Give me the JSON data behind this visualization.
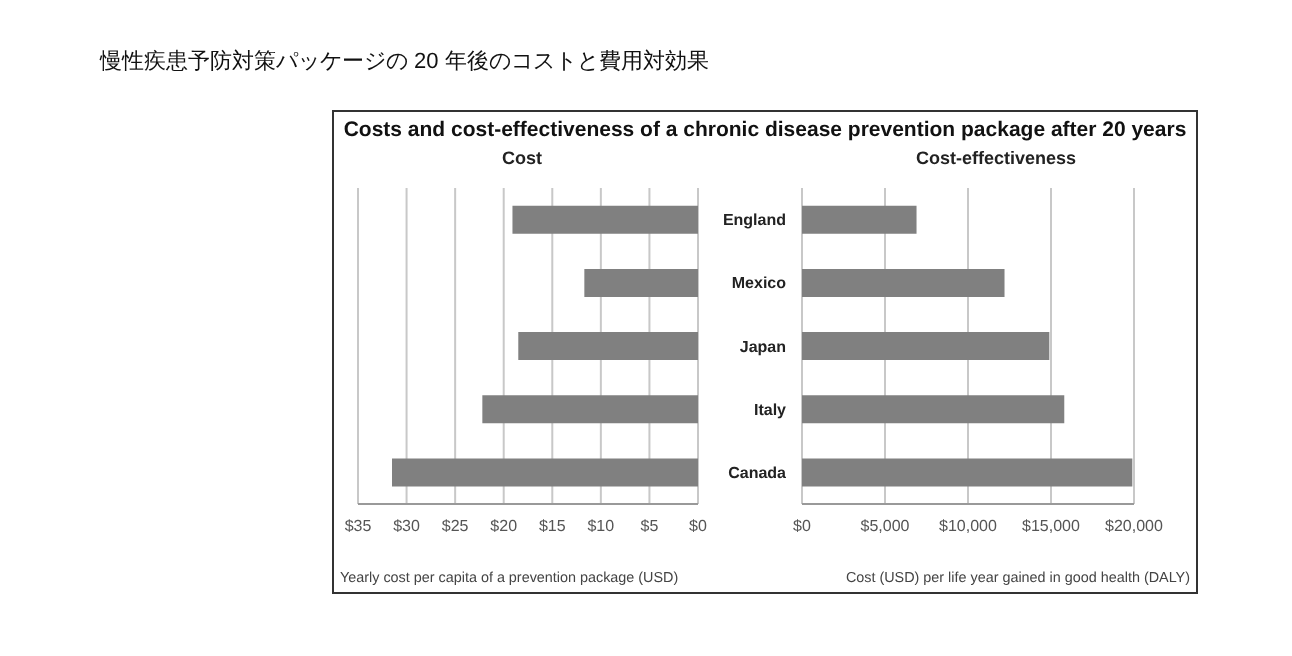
{
  "chart_data": [
    {
      "type": "bar",
      "orientation": "horizontal",
      "title": "Cost",
      "annotations": [
        "慢性疾患予防対策パッケージの 20 年後のコストと費用対効果",
        "Costs and cost-effectiveness of a chronic disease prevention package after 20 years"
      ],
      "xlabel": "Yearly cost per capita of a prevention package (USD)",
      "values": [
        19.1,
        11.7,
        18.5,
        22.2,
        31.5
      ],
      "color": "#808080",
      "xlim": [
        35,
        0
      ],
      "xticks": [
        {
          "value": 35,
          "label": "$35"
        },
        {
          "value": 30,
          "label": "$30"
        },
        {
          "value": 25,
          "label": "$25"
        },
        {
          "value": 20,
          "label": "$20"
        },
        {
          "value": 15,
          "label": "$15"
        },
        {
          "value": 10,
          "label": "$10"
        },
        {
          "value": 5,
          "label": "$5"
        },
        {
          "value": 0,
          "label": "$0"
        }
      ],
      "grid": "x",
      "tick_labels": "x",
      "legend": false
    },
    {
      "type": "bar",
      "orientation": "horizontal",
      "title": "Cost-effectiveness",
      "xlabel": "Cost (USD) per life year gained in good health (DALY)",
      "categories": [
        "England",
        "Mexico",
        "Japan",
        "Italy",
        "Canada"
      ],
      "values": [
        6900,
        12200,
        14900,
        15800,
        19900
      ],
      "color": "#808080",
      "xlim": [
        0,
        20000
      ],
      "xticks": [
        {
          "value": 0,
          "label": "$0"
        },
        {
          "value": 5000,
          "label": "$5,000"
        },
        {
          "value": 10000,
          "label": "$10,000"
        },
        {
          "value": 15000,
          "label": "$15,000"
        },
        {
          "value": 20000,
          "label": "$20,000"
        }
      ],
      "grid": "x",
      "legend": false
    }
  ]
}
